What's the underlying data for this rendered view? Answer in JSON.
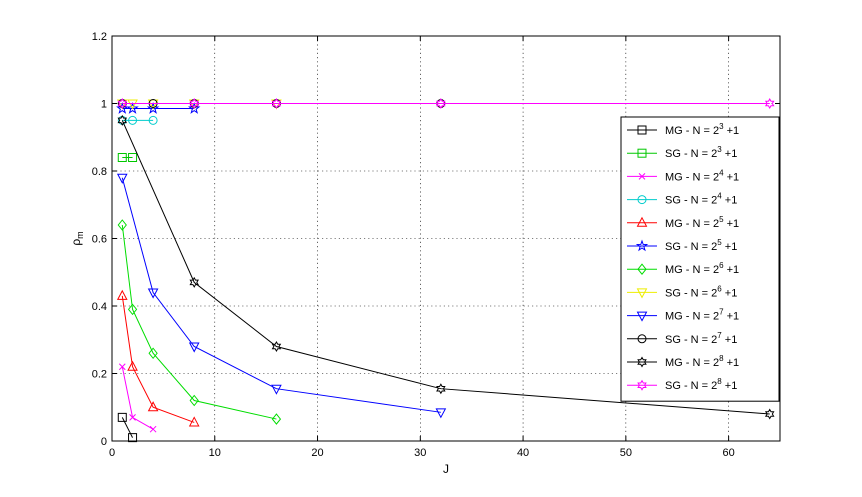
{
  "chart_data": {
    "type": "line",
    "xlabel": "J",
    "ylabel": "ρ",
    "ylabel_sub": "m",
    "xlim": [
      0,
      65
    ],
    "ylim": [
      0,
      1.2
    ],
    "xticks": [
      "0",
      "10",
      "20",
      "30",
      "40",
      "50",
      "60"
    ],
    "yticks": [
      "0",
      "0.2",
      "0.4",
      "0.6",
      "0.8",
      "1",
      "1.2"
    ],
    "grid": true,
    "legend_position": "right",
    "series": [
      {
        "name": "MG - N = 2",
        "exp": "3",
        "suffix": " +1",
        "color": "#000000",
        "marker": "square",
        "points": [
          [
            1,
            0.07
          ],
          [
            2,
            0.01
          ]
        ]
      },
      {
        "name": "SG - N = 2",
        "exp": "3",
        "suffix": " +1",
        "color": "#00c800",
        "marker": "square",
        "points": [
          [
            1,
            0.84
          ],
          [
            2,
            0.84
          ]
        ]
      },
      {
        "name": "MG - N = 2",
        "exp": "4",
        "suffix": " +1",
        "color": "#ff00ff",
        "marker": "x",
        "points": [
          [
            1,
            0.22
          ],
          [
            2,
            0.07
          ],
          [
            4,
            0.035
          ]
        ]
      },
      {
        "name": "SG - N = 2",
        "exp": "4",
        "suffix": " +1",
        "color": "#00cccc",
        "marker": "circle",
        "points": [
          [
            1,
            0.95
          ],
          [
            2,
            0.95
          ],
          [
            4,
            0.95
          ]
        ]
      },
      {
        "name": "MG - N = 2",
        "exp": "5",
        "suffix": " +1",
        "color": "#ff0000",
        "marker": "triangle-up",
        "points": [
          [
            1,
            0.43
          ],
          [
            2,
            0.22
          ],
          [
            4,
            0.1
          ],
          [
            8,
            0.055
          ]
        ]
      },
      {
        "name": "SG - N = 2",
        "exp": "5",
        "suffix": " +1",
        "color": "#0000ff",
        "marker": "star",
        "points": [
          [
            1,
            0.985
          ],
          [
            2,
            0.985
          ],
          [
            4,
            0.985
          ],
          [
            8,
            0.985
          ]
        ]
      },
      {
        "name": "MG - N = 2",
        "exp": "6",
        "suffix": " +1",
        "color": "#00dd00",
        "marker": "diamond",
        "points": [
          [
            1,
            0.64
          ],
          [
            2,
            0.39
          ],
          [
            4,
            0.26
          ],
          [
            8,
            0.12
          ],
          [
            16,
            0.065
          ]
        ]
      },
      {
        "name": "SG - N = 2",
        "exp": "6",
        "suffix": " +1",
        "color": "#eeee00",
        "marker": "triangle-down",
        "points": [
          [
            1,
            1.0
          ],
          [
            2,
            1.0
          ],
          [
            4,
            1.0
          ],
          [
            8,
            1.0
          ],
          [
            16,
            1.0
          ]
        ]
      },
      {
        "name": "MG - N = 2",
        "exp": "7",
        "suffix": " +1",
        "color": "#0000ff",
        "marker": "triangle-down",
        "points": [
          [
            1,
            0.78
          ],
          [
            4,
            0.44
          ],
          [
            8,
            0.28
          ],
          [
            16,
            0.155
          ],
          [
            32,
            0.085
          ]
        ]
      },
      {
        "name": "SG - N = 2",
        "exp": "7",
        "suffix": " +1",
        "color": "#000000",
        "marker": "circle",
        "points": [
          [
            1,
            1.0
          ],
          [
            4,
            1.0
          ],
          [
            8,
            1.0
          ],
          [
            16,
            1.0
          ],
          [
            32,
            1.0
          ]
        ]
      },
      {
        "name": "MG - N = 2",
        "exp": "8",
        "suffix": " +1",
        "color": "#000000",
        "marker": "hexagram",
        "points": [
          [
            1,
            0.95
          ],
          [
            8,
            0.47
          ],
          [
            16,
            0.28
          ],
          [
            32,
            0.155
          ],
          [
            64,
            0.08
          ]
        ]
      },
      {
        "name": "SG - N = 2",
        "exp": "8",
        "suffix": " +1",
        "color": "#ff00ff",
        "marker": "hexagram",
        "points": [
          [
            1,
            1.0
          ],
          [
            8,
            1.0
          ],
          [
            16,
            1.0
          ],
          [
            32,
            1.0
          ],
          [
            64,
            1.0
          ]
        ]
      }
    ]
  }
}
